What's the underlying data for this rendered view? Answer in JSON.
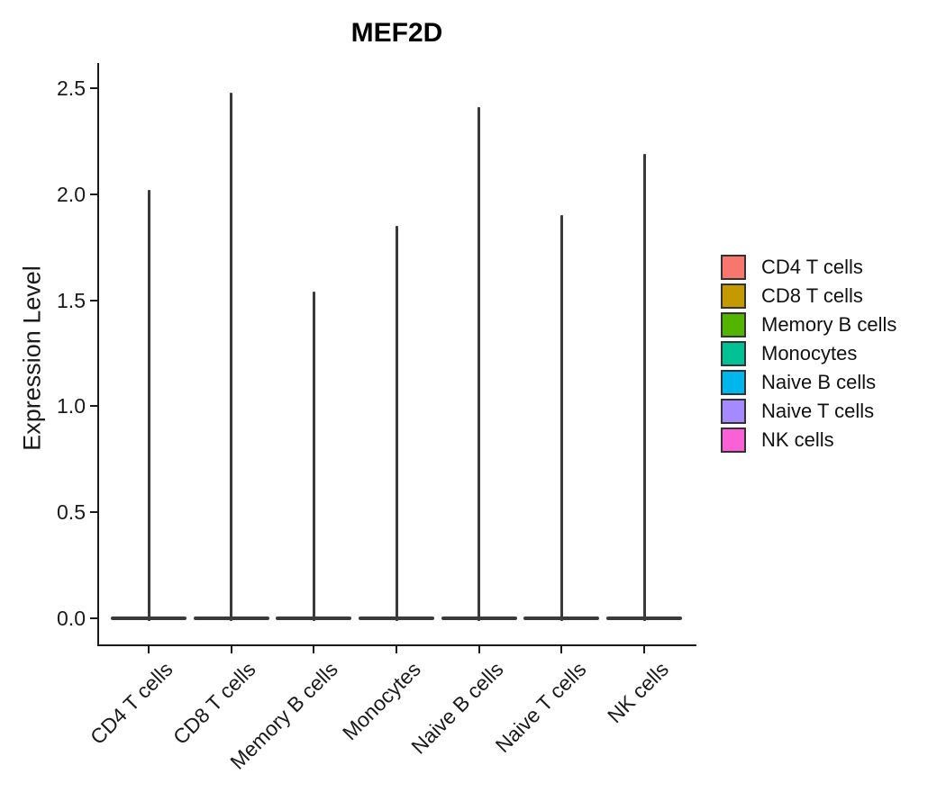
{
  "chart_data": {
    "type": "violin",
    "title": "MEF2D",
    "ylabel": "Expression Level",
    "xlabel": "",
    "categories": [
      "CD4 T cells",
      "CD8 T cells",
      "Memory B cells",
      "Monocytes",
      "Naive B cells",
      "Naive T cells",
      "NK cells"
    ],
    "series": [
      {
        "name": "Expression Level (violin spike maximum)",
        "values": [
          2.02,
          2.48,
          1.54,
          1.85,
          2.41,
          1.9,
          2.19
        ]
      }
    ],
    "shape_note": "Each violin has nearly all density at expression 0 (flat base bar ~84px wide) with a very thin vertical spike rising to the maximum expression value",
    "ylim": [
      0,
      2.6
    ],
    "y_ticks": [
      0.0,
      0.5,
      1.0,
      1.5,
      2.0,
      2.5
    ],
    "y_tick_labels": [
      "0.0",
      "0.5",
      "1.0",
      "1.5",
      "2.0",
      "2.5"
    ],
    "grid": false,
    "legend_position": "right",
    "legend": [
      {
        "label": "CD4 T cells",
        "color": "#F8766D"
      },
      {
        "label": "CD8 T cells",
        "color": "#C49A00"
      },
      {
        "label": "Memory B cells",
        "color": "#53B400"
      },
      {
        "label": "Monocytes",
        "color": "#00C094"
      },
      {
        "label": "Naive B cells",
        "color": "#00B6EB"
      },
      {
        "label": "Naive T cells",
        "color": "#A58AFF"
      },
      {
        "label": "NK cells",
        "color": "#FB61D7"
      }
    ],
    "colors": {
      "violin_outline": "#3A3A3A",
      "axis": "#1A1A1A",
      "text": "#1A1A1A",
      "background": "#FFFFFF"
    }
  }
}
